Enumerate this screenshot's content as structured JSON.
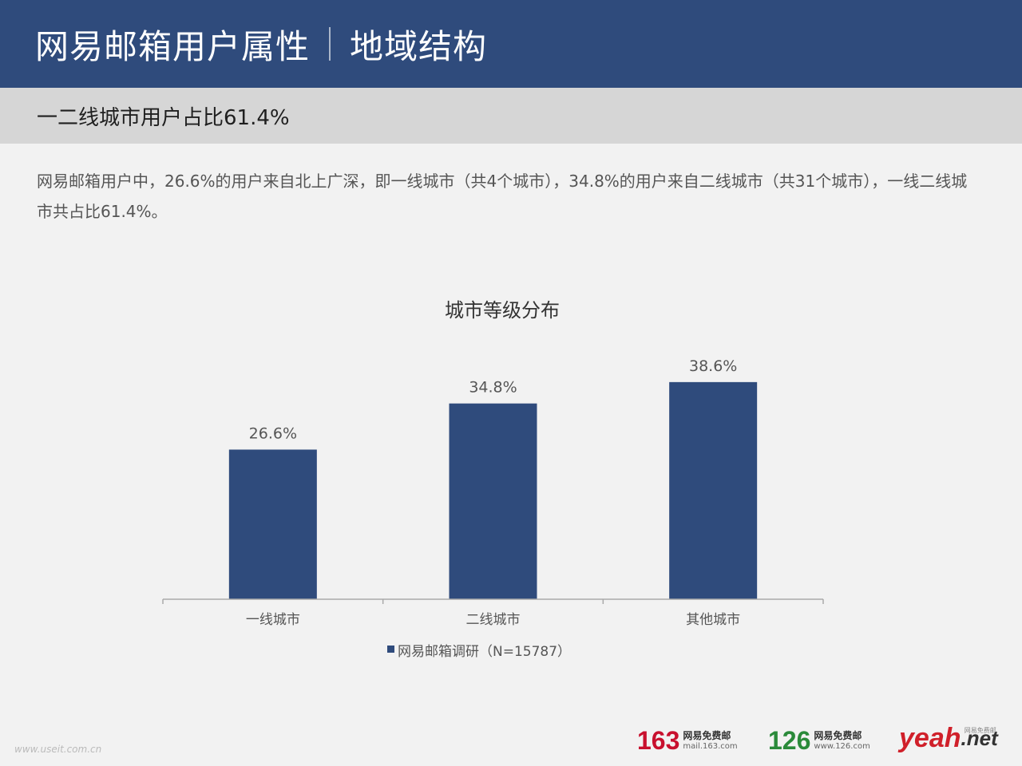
{
  "header": {
    "title": "网易邮箱用户属性",
    "subtitle": "地域结构"
  },
  "subbar": {
    "text": "一二线城市用户占比61.4%"
  },
  "description": "网易邮箱用户中，26.6%的用户来自北上广深，即一线城市（共4个城市），34.8%的用户来自二线城市（共31个城市），一线二线城市共占比61.4%。",
  "chart_data": {
    "type": "bar",
    "title": "城市等级分布",
    "categories": [
      "一线城市",
      "二线城市",
      "其他城市"
    ],
    "series": [
      {
        "name": "网易邮箱调研（N=15787）",
        "values": [
          26.6,
          34.8,
          38.6
        ]
      }
    ],
    "value_labels": [
      "26.6%",
      "34.8%",
      "38.6%"
    ],
    "ylim": [
      0,
      50
    ],
    "grid": false,
    "legend_position": "bottom",
    "bar_color": "#2f4b7c"
  },
  "footer": {
    "watermark": "www.useit.com.cn",
    "logos": [
      {
        "num": "163",
        "name": "网易免费邮",
        "domain": "mail.163.com"
      },
      {
        "num": "126",
        "name": "网易免费邮",
        "domain": "www.126.com"
      },
      {
        "brand": "yeah",
        "suffix": ".net",
        "small": "网易免费邮"
      }
    ]
  }
}
